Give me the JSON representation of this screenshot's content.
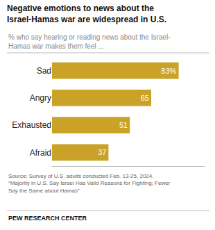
{
  "chart_data": {
    "type": "bar",
    "orientation": "horizontal",
    "title": "Negative emotions to news about the\nIsrael-Hamas war are widespread in U.S.",
    "subtitle": "% who say hearing or reading news about the Israel-\nHamas war makes them feel ...",
    "categories": [
      "Sad",
      "Angry",
      "Exhausted",
      "Afraid"
    ],
    "values": [
      83,
      65,
      51,
      37
    ],
    "value_labels": [
      "83%",
      "65",
      "51",
      "37"
    ],
    "data_labels": true,
    "color": "#C9A227",
    "xlim": [
      0,
      100
    ],
    "tick_labels": "y",
    "grid": false,
    "annotations": [
      "Source: Survey of U.S. adults conducted Feb. 13-25, 2024.\n“Majority in U.S. Say Israel Has Valid Reasons for Fighting; Fewer\nSay the Same about Hamas”",
      "PEW RESEARCH CENTER"
    ]
  }
}
